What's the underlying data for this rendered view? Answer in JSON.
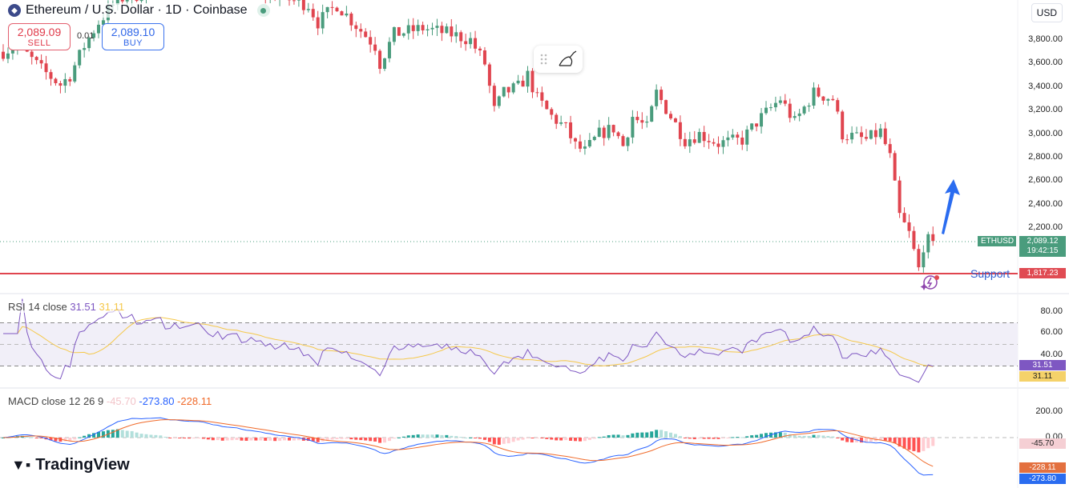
{
  "header": {
    "title": "Ethereum / U.S. Dollar · 1D · Coinbase",
    "sell_price": "2,089.09",
    "sell_label": "SELL",
    "spread": "0.01",
    "buy_price": "2,089.10",
    "buy_label": "BUY",
    "currency": "USD",
    "coin_icon": "ethereum-icon"
  },
  "price_axis": {
    "ticks": [
      "3,800.00",
      "3,600.00",
      "3,400.00",
      "3,200.00",
      "3,000.00",
      "2,800.00",
      "2,600.00",
      "2,400.00",
      "2,200.00"
    ]
  },
  "current_price": {
    "symbol": "ETHUSD",
    "price": "2,089.12",
    "countdown": "19:42:15",
    "color": "#4a9c7d"
  },
  "support": {
    "label": "Support",
    "price": "1,817.23",
    "color": "#e04b53"
  },
  "colors": {
    "up": "#4a9c7d",
    "down": "#e0454f",
    "rsi": "#7e57c2",
    "rsi_ma": "#f5c84a",
    "macd": "#2962ff",
    "signal": "#f06a2a"
  },
  "rsi": {
    "label": "RSI",
    "params": "14 close",
    "value": "31.51",
    "ma_value": "31.11",
    "ticks": [
      "80.00",
      "60.00",
      "40.00"
    ]
  },
  "macd": {
    "label": "MACD",
    "params": "close 12 26 9",
    "histogram": "-45.70",
    "macd": "-273.80",
    "signal": "-228.11",
    "ticks": [
      "200.00",
      "0.00"
    ]
  },
  "brand": "TradingView",
  "chart_data": {
    "type": "candlestick",
    "symbol": "ETHUSD",
    "timeframe": "1D",
    "price_keypoints": [
      [
        0,
        3700
      ],
      [
        3,
        3760
      ],
      [
        8,
        3550
      ],
      [
        12,
        3420
      ],
      [
        14,
        3500
      ],
      [
        17,
        3750
      ],
      [
        20,
        3950
      ],
      [
        24,
        4150
      ],
      [
        30,
        4200
      ],
      [
        40,
        4300
      ],
      [
        55,
        4200
      ],
      [
        64,
        4100
      ],
      [
        66,
        3950
      ],
      [
        70,
        4100
      ],
      [
        78,
        3750
      ],
      [
        79,
        3600
      ],
      [
        82,
        3850
      ],
      [
        88,
        3900
      ],
      [
        94,
        3850
      ],
      [
        98,
        3800
      ],
      [
        101,
        3600
      ],
      [
        103,
        3200
      ],
      [
        105,
        3350
      ],
      [
        108,
        3400
      ],
      [
        110,
        3500
      ],
      [
        112,
        3300
      ],
      [
        115,
        3150
      ],
      [
        118,
        3050
      ],
      [
        120,
        2900
      ],
      [
        122,
        2850
      ],
      [
        125,
        3000
      ],
      [
        128,
        3050
      ],
      [
        130,
        2900
      ],
      [
        132,
        3150
      ],
      [
        135,
        3050
      ],
      [
        137,
        3350
      ],
      [
        140,
        3150
      ],
      [
        143,
        2950
      ],
      [
        146,
        3000
      ],
      [
        150,
        2920
      ],
      [
        155,
        2950
      ],
      [
        158,
        3100
      ],
      [
        163,
        3300
      ],
      [
        166,
        3100
      ],
      [
        170,
        3350
      ],
      [
        174,
        3300
      ],
      [
        176,
        3000
      ],
      [
        181,
        2950
      ],
      [
        184,
        3020
      ],
      [
        186,
        2800
      ],
      [
        188,
        2300
      ],
      [
        190,
        2150
      ],
      [
        191,
        2000
      ],
      [
        192,
        1850
      ],
      [
        193,
        2050
      ],
      [
        194,
        2090
      ],
      [
        195,
        2090
      ]
    ]
  }
}
